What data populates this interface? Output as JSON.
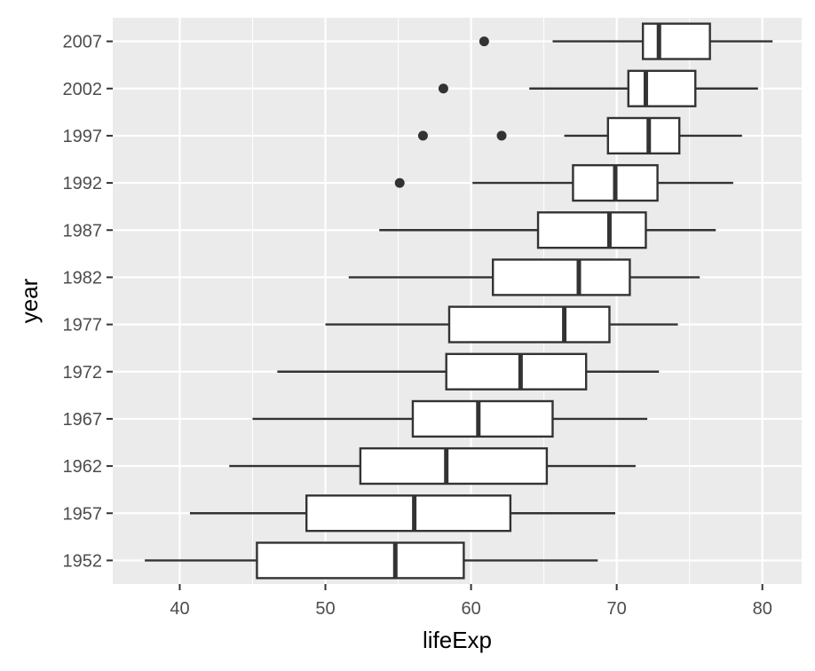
{
  "chart_data": {
    "type": "boxplot",
    "orientation": "horizontal",
    "title": "",
    "xlabel": "lifeExp",
    "ylabel": "year",
    "xlim": [
      35.4,
      82.7
    ],
    "xticks": [
      40,
      50,
      60,
      70,
      80
    ],
    "categories": [
      "1952",
      "1957",
      "1962",
      "1967",
      "1972",
      "1977",
      "1982",
      "1987",
      "1992",
      "1997",
      "2002",
      "2007"
    ],
    "boxes": [
      {
        "year": "1952",
        "whisker_low": 37.6,
        "q1": 45.3,
        "median": 54.8,
        "q3": 59.5,
        "whisker_high": 68.7,
        "outliers": []
      },
      {
        "year": "1957",
        "whisker_low": 40.7,
        "q1": 48.7,
        "median": 56.1,
        "q3": 62.7,
        "whisker_high": 69.9,
        "outliers": []
      },
      {
        "year": "1962",
        "whisker_low": 43.4,
        "q1": 52.4,
        "median": 58.3,
        "q3": 65.2,
        "whisker_high": 71.3,
        "outliers": []
      },
      {
        "year": "1967",
        "whisker_low": 45.0,
        "q1": 56.0,
        "median": 60.5,
        "q3": 65.6,
        "whisker_high": 72.1,
        "outliers": []
      },
      {
        "year": "1972",
        "whisker_low": 46.7,
        "q1": 58.3,
        "median": 63.4,
        "q3": 67.9,
        "whisker_high": 72.9,
        "outliers": []
      },
      {
        "year": "1977",
        "whisker_low": 50.0,
        "q1": 58.5,
        "median": 66.4,
        "q3": 69.5,
        "whisker_high": 74.2,
        "outliers": []
      },
      {
        "year": "1982",
        "whisker_low": 51.6,
        "q1": 61.5,
        "median": 67.4,
        "q3": 70.9,
        "whisker_high": 75.7,
        "outliers": []
      },
      {
        "year": "1987",
        "whisker_low": 53.7,
        "q1": 64.6,
        "median": 69.5,
        "q3": 72.0,
        "whisker_high": 76.8,
        "outliers": []
      },
      {
        "year": "1992",
        "whisker_low": 60.1,
        "q1": 67.0,
        "median": 69.9,
        "q3": 72.8,
        "whisker_high": 78.0,
        "outliers": [
          55.1
        ]
      },
      {
        "year": "1997",
        "whisker_low": 66.4,
        "q1": 69.4,
        "median": 72.2,
        "q3": 74.3,
        "whisker_high": 78.6,
        "outliers": [
          56.7,
          62.1
        ]
      },
      {
        "year": "2002",
        "whisker_low": 64.0,
        "q1": 70.8,
        "median": 72.0,
        "q3": 75.4,
        "whisker_high": 79.7,
        "outliers": [
          58.1
        ]
      },
      {
        "year": "2007",
        "whisker_low": 65.6,
        "q1": 71.8,
        "median": 72.9,
        "q3": 76.4,
        "whisker_high": 80.7,
        "outliers": [
          60.9
        ]
      }
    ],
    "grid": true,
    "legend": "none",
    "colors": {
      "panel_background": "#ebebeb",
      "grid_line": "#ffffff",
      "box_fill": "#ffffff",
      "box_stroke": "#333333",
      "outlier": "#333333",
      "tick_text": "#4d4d4d",
      "title_text": "#000000"
    }
  }
}
